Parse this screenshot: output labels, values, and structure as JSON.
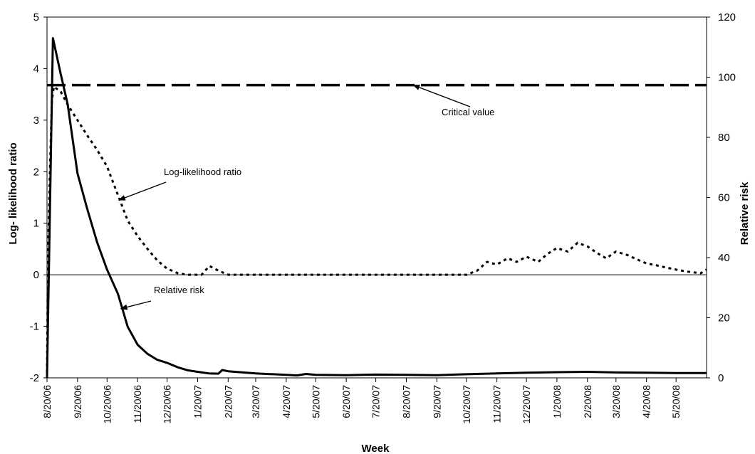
{
  "chart_data": {
    "type": "line",
    "xlabel": "Week",
    "ylabel_left": "Log- likelihood ratio",
    "ylabel_right": "Relative risk",
    "ylim_left": [
      -2,
      5
    ],
    "ylim_right": [
      0,
      120
    ],
    "yticks_left": [
      "5",
      "4",
      "3",
      "2",
      "1",
      "0",
      "-1",
      "-2"
    ],
    "yticks_right": [
      "120",
      "100",
      "80",
      "60",
      "40",
      "20",
      "0"
    ],
    "x_start": "8/20/06",
    "x_end": "6/20/08",
    "x_tick_labels": [
      "8/20/06",
      "9/20/06",
      "10/20/06",
      "11/20/06",
      "12/20/06",
      "1/20/07",
      "2/20/07",
      "3/20/07",
      "4/20/07",
      "5/20/07",
      "6/20/07",
      "7/20/07",
      "8/20/07",
      "9/20/07",
      "10/20/07",
      "11/20/07",
      "12/20/07",
      "1/20/08",
      "2/20/08",
      "3/20/08",
      "4/20/08",
      "5/20/08"
    ],
    "grid": false,
    "legend": "none",
    "series": [
      {
        "name": "Log-likelihood ratio",
        "axis": "left",
        "style": "dotted",
        "color": "#000000",
        "points": [
          [
            "8/20/06",
            -1.9
          ],
          [
            "8/21/06",
            0.3
          ],
          [
            "8/23/06",
            2.0
          ],
          [
            "8/25/06",
            3.4
          ],
          [
            "8/27/06",
            3.65
          ],
          [
            "9/3/06",
            3.55
          ],
          [
            "9/10/06",
            3.3
          ],
          [
            "9/20/06",
            3.0
          ],
          [
            "9/30/06",
            2.7
          ],
          [
            "10/10/06",
            2.42
          ],
          [
            "10/20/06",
            2.1
          ],
          [
            "10/31/06",
            1.55
          ],
          [
            "11/10/06",
            1.05
          ],
          [
            "11/20/06",
            0.75
          ],
          [
            "12/1/06",
            0.48
          ],
          [
            "12/10/06",
            0.28
          ],
          [
            "12/20/06",
            0.12
          ],
          [
            "12/31/06",
            0.03
          ],
          [
            "1/10/07",
            0.0
          ],
          [
            "1/24/07",
            0.0
          ],
          [
            "2/1/07",
            0.17
          ],
          [
            "2/10/07",
            0.08
          ],
          [
            "2/20/07",
            0.0
          ],
          [
            "3/20/07",
            0.0
          ],
          [
            "4/20/07",
            0.0
          ],
          [
            "5/20/07",
            0.0
          ],
          [
            "6/20/07",
            0.0
          ],
          [
            "7/20/07",
            0.0
          ],
          [
            "8/20/07",
            0.0
          ],
          [
            "9/20/07",
            0.0
          ],
          [
            "10/20/07",
            0.0
          ],
          [
            "10/31/07",
            0.08
          ],
          [
            "11/10/07",
            0.25
          ],
          [
            "11/20/07",
            0.2
          ],
          [
            "12/1/07",
            0.32
          ],
          [
            "12/10/07",
            0.25
          ],
          [
            "12/20/07",
            0.35
          ],
          [
            "1/1/08",
            0.25
          ],
          [
            "1/10/08",
            0.4
          ],
          [
            "1/20/08",
            0.52
          ],
          [
            "1/31/08",
            0.45
          ],
          [
            "2/10/08",
            0.62
          ],
          [
            "2/20/08",
            0.55
          ],
          [
            "3/1/08",
            0.42
          ],
          [
            "3/10/08",
            0.32
          ],
          [
            "3/20/08",
            0.45
          ],
          [
            "4/1/08",
            0.38
          ],
          [
            "4/10/08",
            0.3
          ],
          [
            "4/20/08",
            0.22
          ],
          [
            "5/1/08",
            0.18
          ],
          [
            "5/10/08",
            0.14
          ],
          [
            "5/20/08",
            0.1
          ],
          [
            "6/1/08",
            0.06
          ],
          [
            "6/14/08",
            0.03
          ],
          [
            "6/20/08",
            0.1
          ]
        ]
      },
      {
        "name": "Relative risk",
        "axis": "right",
        "style": "solid",
        "color": "#000000",
        "points": [
          [
            "8/20/06",
            0
          ],
          [
            "8/26/06",
            113
          ],
          [
            "9/3/06",
            101
          ],
          [
            "9/10/06",
            91
          ],
          [
            "9/20/06",
            68
          ],
          [
            "9/30/06",
            56
          ],
          [
            "10/10/06",
            45
          ],
          [
            "10/20/06",
            36
          ],
          [
            "10/31/06",
            28
          ],
          [
            "11/10/06",
            17
          ],
          [
            "11/20/06",
            11
          ],
          [
            "11/30/06",
            8
          ],
          [
            "12/10/06",
            6
          ],
          [
            "12/20/06",
            5
          ],
          [
            "12/31/06",
            3.5
          ],
          [
            "1/10/07",
            2.5
          ],
          [
            "1/20/07",
            2.0
          ],
          [
            "1/31/07",
            1.5
          ],
          [
            "2/10/07",
            1.4
          ],
          [
            "2/14/07",
            2.6
          ],
          [
            "2/20/07",
            2.2
          ],
          [
            "3/20/07",
            1.5
          ],
          [
            "4/20/07",
            1.0
          ],
          [
            "5/1/07",
            0.8
          ],
          [
            "5/10/07",
            1.3
          ],
          [
            "5/20/07",
            1.0
          ],
          [
            "6/20/07",
            0.9
          ],
          [
            "7/20/07",
            1.1
          ],
          [
            "8/20/07",
            1.0
          ],
          [
            "9/20/07",
            0.9
          ],
          [
            "10/20/07",
            1.2
          ],
          [
            "11/20/07",
            1.5
          ],
          [
            "12/20/07",
            1.7
          ],
          [
            "1/20/08",
            1.9
          ],
          [
            "2/20/08",
            2.0
          ],
          [
            "3/20/08",
            1.8
          ],
          [
            "4/20/08",
            1.7
          ],
          [
            "5/20/08",
            1.6
          ],
          [
            "6/20/08",
            1.6
          ]
        ]
      }
    ],
    "reference_lines": [
      {
        "name": "Critical value",
        "axis": "left",
        "value": 3.68,
        "style": "dashed"
      }
    ],
    "annotations": [
      {
        "text": "Critical value",
        "points_to": [
          "8/27/07",
          3.68
        ]
      },
      {
        "text": "Log-likelihood ratio",
        "points_to": [
          "11/1/06",
          1.45
        ]
      },
      {
        "text": "Relative risk",
        "points_to": [
          "11/3/06",
          23
        ]
      }
    ]
  }
}
